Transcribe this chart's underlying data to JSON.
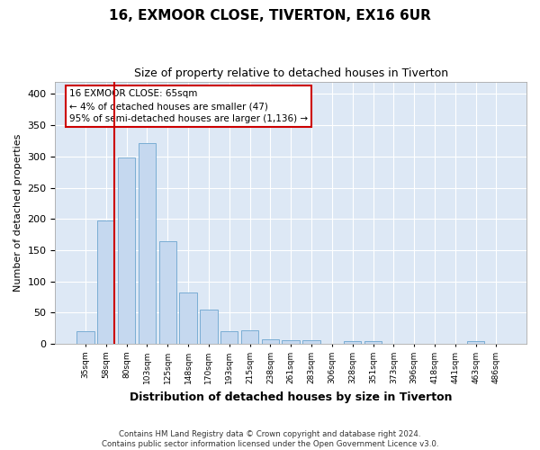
{
  "title": "16, EXMOOR CLOSE, TIVERTON, EX16 6UR",
  "subtitle": "Size of property relative to detached houses in Tiverton",
  "xlabel": "Distribution of detached houses by size in Tiverton",
  "ylabel": "Number of detached properties",
  "bar_color": "#c5d8ef",
  "bar_edge_color": "#7aadd4",
  "background_color": "#dde8f5",
  "grid_color": "#ffffff",
  "categories": [
    "35sqm",
    "58sqm",
    "80sqm",
    "103sqm",
    "125sqm",
    "148sqm",
    "170sqm",
    "193sqm",
    "215sqm",
    "238sqm",
    "261sqm",
    "283sqm",
    "306sqm",
    "328sqm",
    "351sqm",
    "373sqm",
    "396sqm",
    "418sqm",
    "441sqm",
    "463sqm",
    "486sqm"
  ],
  "values": [
    20,
    197,
    298,
    322,
    165,
    82,
    55,
    21,
    22,
    7,
    6,
    6,
    0,
    5,
    5,
    0,
    0,
    0,
    0,
    4,
    0
  ],
  "ylim": [
    0,
    420
  ],
  "yticks": [
    0,
    50,
    100,
    150,
    200,
    250,
    300,
    350,
    400
  ],
  "red_line_x": 1.42,
  "annotation_text": "16 EXMOOR CLOSE: 65sqm\n← 4% of detached houses are smaller (47)\n95% of semi-detached houses are larger (1,136) →",
  "annotation_box_color": "#ffffff",
  "annotation_box_edge_color": "#cc0000",
  "annotation_text_size": 7.5,
  "red_line_color": "#cc0000",
  "footer_text": "Contains HM Land Registry data © Crown copyright and database right 2024.\nContains public sector information licensed under the Open Government Licence v3.0.",
  "fig_bg": "#ffffff",
  "title_fontsize": 11,
  "subtitle_fontsize": 9,
  "xlabel_fontsize": 9,
  "ylabel_fontsize": 8
}
